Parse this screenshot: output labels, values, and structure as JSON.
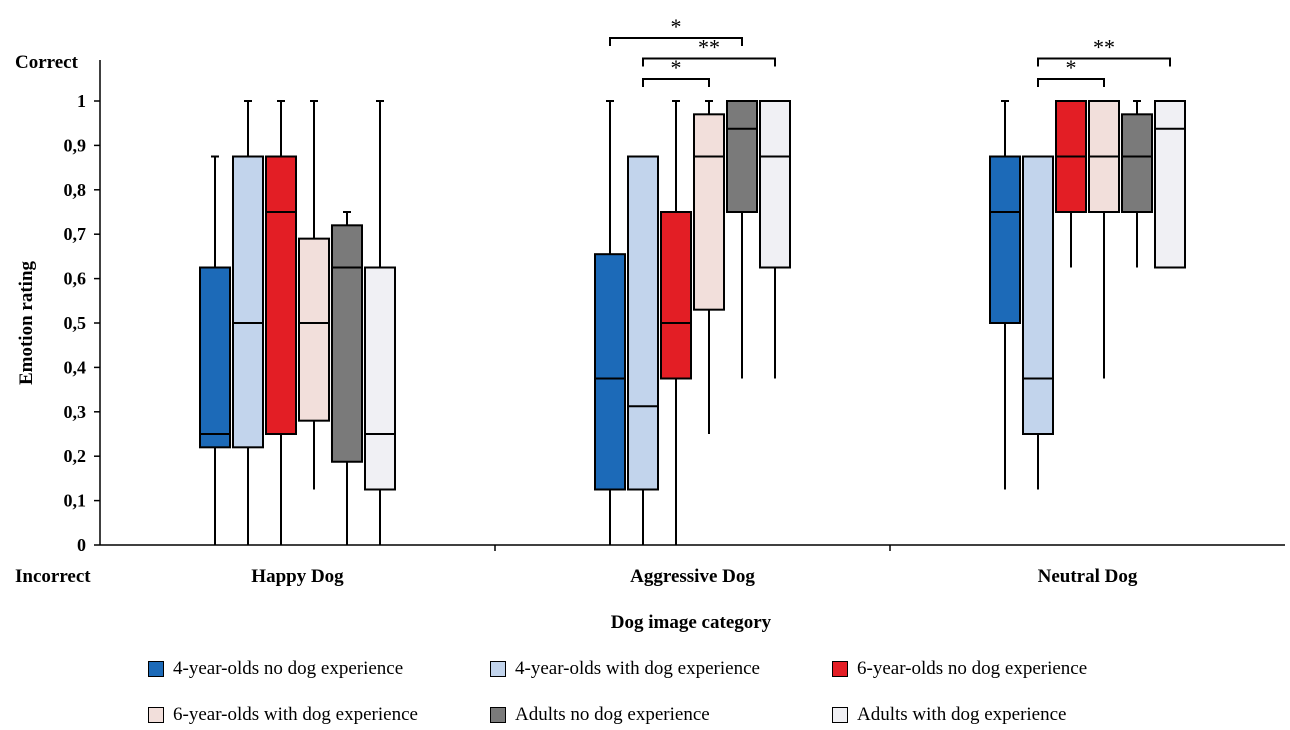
{
  "chart_data": {
    "type": "box",
    "title": "",
    "xlabel": "Dog image category",
    "ylabel": "Emotion rating",
    "ylim": [
      0,
      1
    ],
    "y_ticks": [
      "0",
      "0,1",
      "0,2",
      "0,3",
      "0,4",
      "0,5",
      "0,6",
      "0,7",
      "0,8",
      "0,9",
      "1"
    ],
    "y_top_label": "Correct",
    "y_bottom_label": "Incorrect",
    "categories": [
      "Happy Dog",
      "Aggressive Dog",
      "Neutral Dog"
    ],
    "series": [
      {
        "name": "4-year-olds no dog experience",
        "color": "#1c6ab8",
        "boxes": [
          {
            "min": 0,
            "q1": 0.22,
            "median": 0.25,
            "q3": 0.625,
            "max": 0.875
          },
          {
            "min": 0,
            "q1": 0.125,
            "median": 0.375,
            "q3": 0.655,
            "max": 1
          },
          {
            "min": 0.125,
            "q1": 0.5,
            "median": 0.75,
            "q3": 0.875,
            "max": 1
          }
        ]
      },
      {
        "name": "4-year-olds with dog experience",
        "color": "#c2d4ec",
        "boxes": [
          {
            "min": 0,
            "q1": 0.22,
            "median": 0.5,
            "q3": 0.875,
            "max": 1
          },
          {
            "min": 0,
            "q1": 0.125,
            "median": 0.3125,
            "q3": 0.875,
            "max": 0.875
          },
          {
            "min": 0.125,
            "q1": 0.25,
            "median": 0.375,
            "q3": 0.875,
            "max": 0.875
          }
        ]
      },
      {
        "name": "6-year-olds no dog experience",
        "color": "#e31e25",
        "boxes": [
          {
            "min": 0,
            "q1": 0.25,
            "median": 0.75,
            "q3": 0.875,
            "max": 1
          },
          {
            "min": 0,
            "q1": 0.375,
            "median": 0.5,
            "q3": 0.75,
            "max": 1
          },
          {
            "min": 0.625,
            "q1": 0.75,
            "median": 0.875,
            "q3": 1,
            "max": 1
          }
        ]
      },
      {
        "name": "6-year-olds with dog experience",
        "color": "#f2dfdb",
        "boxes": [
          {
            "min": 0.125,
            "q1": 0.28,
            "median": 0.5,
            "q3": 0.69,
            "max": 1
          },
          {
            "min": 0.25,
            "q1": 0.53,
            "median": 0.875,
            "q3": 0.97,
            "max": 1
          },
          {
            "min": 0.375,
            "q1": 0.75,
            "median": 0.875,
            "q3": 1,
            "max": 1
          }
        ]
      },
      {
        "name": "Adults no dog experience",
        "color": "#7a7a7a",
        "boxes": [
          {
            "min": 0,
            "q1": 0.1875,
            "median": 0.625,
            "q3": 0.72,
            "max": 0.75
          },
          {
            "min": 0.375,
            "q1": 0.75,
            "median": 0.9375,
            "q3": 1,
            "max": 1
          },
          {
            "min": 0.625,
            "q1": 0.75,
            "median": 0.875,
            "q3": 0.97,
            "max": 1
          }
        ]
      },
      {
        "name": "Adults with dog experience",
        "color": "#f0f0f4",
        "boxes": [
          {
            "min": 0,
            "q1": 0.125,
            "median": 0.25,
            "q3": 0.625,
            "max": 1
          },
          {
            "min": 0.375,
            "q1": 0.625,
            "median": 0.875,
            "q3": 1,
            "max": 1
          },
          {
            "min": 0.625,
            "q1": 0.625,
            "median": 0.9375,
            "q3": 1,
            "max": 1
          }
        ]
      }
    ],
    "annotations": [
      {
        "category": 1,
        "from_series": 0,
        "to_series": 4,
        "label": "*"
      },
      {
        "category": 1,
        "from_series": 1,
        "to_series": 5,
        "label": "**"
      },
      {
        "category": 1,
        "from_series": 1,
        "to_series": 3,
        "label": "*"
      },
      {
        "category": 2,
        "from_series": 1,
        "to_series": 5,
        "label": "**"
      },
      {
        "category": 2,
        "from_series": 1,
        "to_series": 3,
        "label": "*"
      }
    ],
    "legend_position": "bottom"
  }
}
